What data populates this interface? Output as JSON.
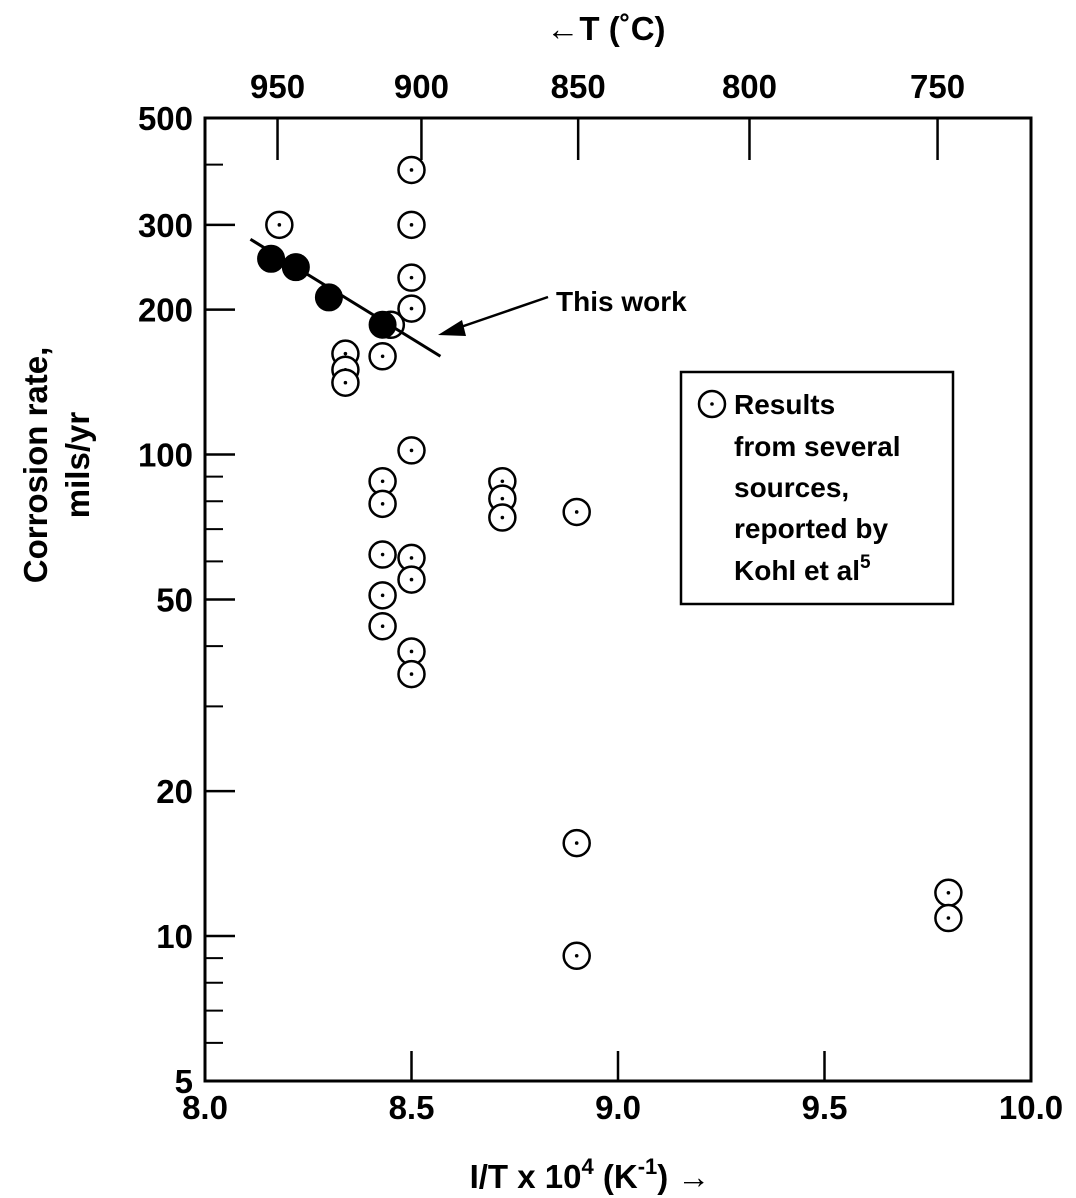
{
  "chart_data": {
    "type": "scatter",
    "xlabel": "I/T x 10",
    "xlabel_sup": "4",
    "xlabel_unit_pre": " (K",
    "xlabel_unit_sup": "-1",
    "xlabel_unit_post": ") →",
    "ylabel_line1": "Corrosion rate,",
    "ylabel_line2": "mils/yr",
    "top_axis_label": "←T (˚C)",
    "xlim": [
      8.0,
      10.0
    ],
    "ylim": [
      5,
      500
    ],
    "y_scale": "log",
    "x_ticks": [
      "8.0",
      "8.5",
      "9.0",
      "9.5",
      "10.0"
    ],
    "x_tick_values": [
      8.0,
      8.5,
      9.0,
      9.5,
      10.0
    ],
    "y_ticks": [
      "5",
      "10",
      "20",
      "50",
      "100",
      "200",
      "300",
      "500"
    ],
    "y_tick_values": [
      5,
      10,
      20,
      50,
      100,
      200,
      300,
      500
    ],
    "y_minor_values": [
      6,
      7,
      8,
      9,
      30,
      40,
      60,
      70,
      80,
      90,
      400
    ],
    "top_ticks": [
      "950",
      "900",
      "850",
      "800",
      "750"
    ],
    "top_tick_values_celsius": [
      950,
      900,
      850,
      800,
      750
    ],
    "annotation": "This work",
    "legend": {
      "lines": [
        "Results",
        "from several",
        "sources,",
        "reported by",
        "Kohl et al"
      ],
      "superscript": "5"
    },
    "series": [
      {
        "name": "This work",
        "marker": "filled-circle",
        "points": [
          {
            "x": 8.16,
            "y": 255
          },
          {
            "x": 8.22,
            "y": 245
          },
          {
            "x": 8.3,
            "y": 212
          },
          {
            "x": 8.43,
            "y": 186
          }
        ],
        "fit_line": [
          {
            "x": 8.11,
            "y": 280
          },
          {
            "x": 8.57,
            "y": 160
          }
        ]
      },
      {
        "name": "Results from several sources, reported by Kohl et al5",
        "marker": "dotted-open-circle",
        "points": [
          {
            "x": 8.18,
            "y": 300
          },
          {
            "x": 8.5,
            "y": 390
          },
          {
            "x": 8.5,
            "y": 300
          },
          {
            "x": 8.5,
            "y": 233
          },
          {
            "x": 8.5,
            "y": 201
          },
          {
            "x": 8.43,
            "y": 160
          },
          {
            "x": 8.45,
            "y": 186
          },
          {
            "x": 8.34,
            "y": 162
          },
          {
            "x": 8.34,
            "y": 150
          },
          {
            "x": 8.34,
            "y": 141
          },
          {
            "x": 8.5,
            "y": 102
          },
          {
            "x": 8.43,
            "y": 88
          },
          {
            "x": 8.43,
            "y": 79
          },
          {
            "x": 8.43,
            "y": 62
          },
          {
            "x": 8.43,
            "y": 51
          },
          {
            "x": 8.43,
            "y": 44
          },
          {
            "x": 8.5,
            "y": 61
          },
          {
            "x": 8.5,
            "y": 55
          },
          {
            "x": 8.5,
            "y": 39
          },
          {
            "x": 8.5,
            "y": 35
          },
          {
            "x": 8.72,
            "y": 88
          },
          {
            "x": 8.72,
            "y": 81
          },
          {
            "x": 8.72,
            "y": 74
          },
          {
            "x": 8.9,
            "y": 76
          },
          {
            "x": 8.9,
            "y": 15.6
          },
          {
            "x": 8.9,
            "y": 9.1
          },
          {
            "x": 9.8,
            "y": 12.3
          },
          {
            "x": 9.8,
            "y": 10.9
          }
        ]
      }
    ]
  }
}
